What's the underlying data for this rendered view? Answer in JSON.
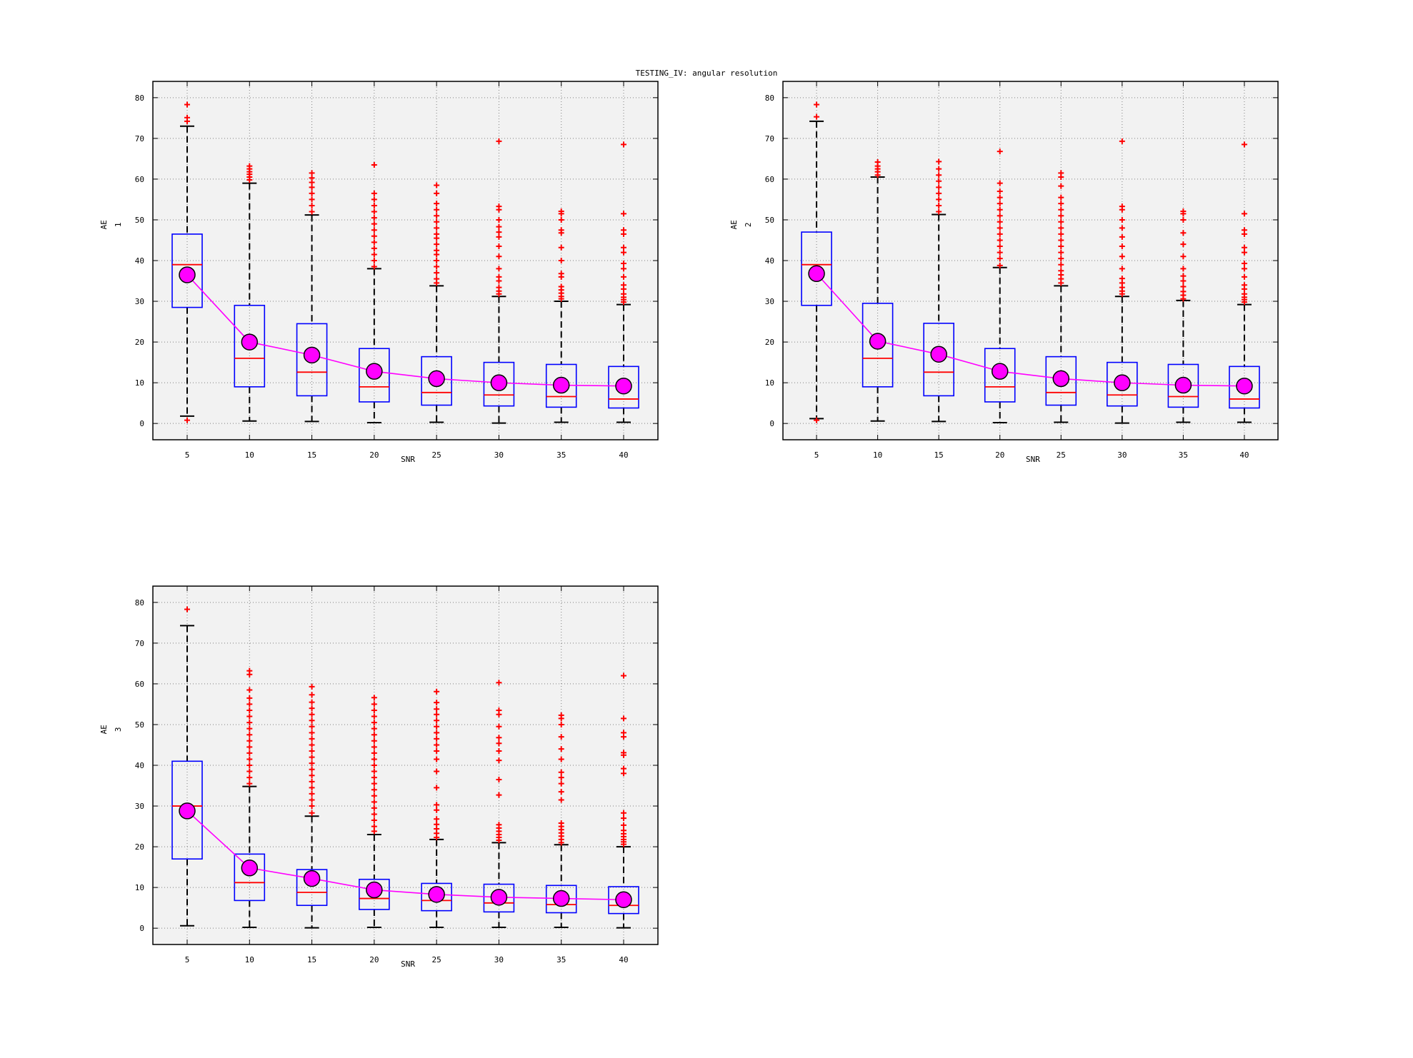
{
  "figure": {
    "title": "TESTING_IV: angular resolution"
  },
  "colors": {
    "plot_bg": "#f2f2f2",
    "box": "#0000ff",
    "median": "#ff0000",
    "outlier": "#ff0000",
    "whisker": "#000000",
    "mean_line": "#ff00ff",
    "mean_marker": "#ff00ff"
  },
  "chart_data": [
    {
      "type": "box",
      "panel": "top-left",
      "xlabel": "SNR",
      "ylabel_top": "AE",
      "ylabel_sub": "1",
      "ylim": [
        -4,
        84
      ],
      "yticks": [
        0,
        10,
        20,
        30,
        40,
        50,
        60,
        70,
        80
      ],
      "grid": true,
      "categories": [
        "5",
        "10",
        "15",
        "20",
        "25",
        "30",
        "35",
        "40"
      ],
      "boxes": [
        {
          "q1": 28.5,
          "median": 39,
          "q3": 46.5,
          "whisker_low": 1.8,
          "whisker_high": 73
        },
        {
          "q1": 9,
          "median": 16,
          "q3": 29,
          "whisker_low": 0.6,
          "whisker_high": 59
        },
        {
          "q1": 6.8,
          "median": 12.6,
          "q3": 24.5,
          "whisker_low": 0.5,
          "whisker_high": 51.2
        },
        {
          "q1": 5.3,
          "median": 9,
          "q3": 18.4,
          "whisker_low": 0.2,
          "whisker_high": 38
        },
        {
          "q1": 4.5,
          "median": 7.6,
          "q3": 16.4,
          "whisker_low": 0.3,
          "whisker_high": 33.8
        },
        {
          "q1": 4.3,
          "median": 7,
          "q3": 15,
          "whisker_low": 0.1,
          "whisker_high": 31.2
        },
        {
          "q1": 4,
          "median": 6.6,
          "q3": 14.5,
          "whisker_low": 0.3,
          "whisker_high": 30
        },
        {
          "q1": 3.8,
          "median": 6,
          "q3": 14,
          "whisker_low": 0.3,
          "whisker_high": 29.2
        }
      ],
      "means": [
        36.5,
        20,
        16.8,
        12.8,
        11,
        10,
        9.4,
        9.2
      ],
      "outliers": [
        [
          0.8,
          74.2,
          75.1,
          78.3
        ],
        [
          59.8,
          60.5,
          61.2,
          61.8,
          62.5,
          63.2
        ],
        [
          52,
          53.5,
          55,
          56.5,
          58,
          59.2,
          60.3,
          61.5
        ],
        [
          38.5,
          40,
          41.5,
          43,
          44.5,
          46,
          47.5,
          49,
          50.5,
          52,
          53.5,
          55,
          56.5,
          63.5
        ],
        [
          34.5,
          35.5,
          37,
          38.5,
          40,
          41.5,
          42.5,
          44,
          45.5,
          46.5,
          48,
          49.5,
          51,
          52.5,
          54,
          56.5,
          58.5
        ],
        [
          31.8,
          32.5,
          33.4,
          35,
          36,
          38,
          41,
          43.5,
          45.8,
          47,
          48.3,
          50,
          52.5,
          53.3,
          69.3
        ],
        [
          30.6,
          31.2,
          32,
          32.8,
          33.6,
          36,
          36.8,
          40,
          43.2,
          46.8,
          47.5,
          50,
          51.5,
          52.1
        ],
        [
          29.8,
          30.4,
          31,
          31.8,
          33,
          34,
          36,
          38,
          39.3,
          42,
          43.2,
          46.5,
          47.5,
          51.5,
          68.5
        ]
      ]
    },
    {
      "type": "box",
      "panel": "top-right",
      "xlabel": "SNR",
      "ylabel_top": "AE",
      "ylabel_sub": "2",
      "ylim": [
        -4,
        84
      ],
      "yticks": [
        0,
        10,
        20,
        30,
        40,
        50,
        60,
        70,
        80
      ],
      "grid": true,
      "categories": [
        "5",
        "10",
        "15",
        "20",
        "25",
        "30",
        "35",
        "40"
      ],
      "boxes": [
        {
          "q1": 29,
          "median": 39,
          "q3": 47,
          "whisker_low": 1.2,
          "whisker_high": 74.2
        },
        {
          "q1": 9,
          "median": 16,
          "q3": 29.5,
          "whisker_low": 0.6,
          "whisker_high": 60.5
        },
        {
          "q1": 6.8,
          "median": 12.6,
          "q3": 24.6,
          "whisker_low": 0.5,
          "whisker_high": 51.3
        },
        {
          "q1": 5.3,
          "median": 9,
          "q3": 18.4,
          "whisker_low": 0.2,
          "whisker_high": 38.3
        },
        {
          "q1": 4.5,
          "median": 7.6,
          "q3": 16.4,
          "whisker_low": 0.3,
          "whisker_high": 33.8
        },
        {
          "q1": 4.3,
          "median": 7,
          "q3": 15,
          "whisker_low": 0.1,
          "whisker_high": 31.2
        },
        {
          "q1": 4,
          "median": 6.6,
          "q3": 14.5,
          "whisker_low": 0.3,
          "whisker_high": 30.2
        },
        {
          "q1": 3.8,
          "median": 6,
          "q3": 14,
          "whisker_low": 0.3,
          "whisker_high": 29.2
        }
      ],
      "means": [
        36.8,
        20.2,
        17,
        12.8,
        11,
        10,
        9.4,
        9.2
      ],
      "outliers": [
        [
          0.8,
          75.3,
          78.3
        ],
        [
          61,
          61.8,
          62.5,
          63.2,
          64.2
        ],
        [
          52,
          53.5,
          55,
          56.5,
          58,
          59.5,
          61,
          62.5,
          64.3
        ],
        [
          38.8,
          40.5,
          42,
          43.5,
          45,
          46.5,
          48,
          49.5,
          51,
          52.5,
          54,
          55.5,
          57,
          59,
          66.8
        ],
        [
          34.5,
          35.5,
          36.5,
          37.5,
          39,
          40.5,
          42,
          43.5,
          45,
          46.5,
          48,
          49.5,
          51,
          52.5,
          54,
          55.5,
          58.3,
          60.5,
          61.5
        ],
        [
          31.8,
          32.5,
          33.4,
          34.5,
          35.6,
          38,
          41,
          43.5,
          45.8,
          48,
          50,
          52.5,
          53.3,
          69.3
        ],
        [
          30.6,
          31.5,
          32.4,
          33.6,
          35,
          36.2,
          38,
          41,
          44,
          46.8,
          50,
          51.5,
          52.1
        ],
        [
          29.8,
          30.4,
          31,
          31.8,
          33,
          34,
          36,
          38,
          39.3,
          42,
          43.2,
          46.5,
          47.5,
          51.5,
          68.5
        ]
      ]
    },
    {
      "type": "box",
      "panel": "bottom-left",
      "xlabel": "SNR",
      "ylabel_top": "AE",
      "ylabel_sub": "3",
      "ylim": [
        -4,
        84
      ],
      "yticks": [
        0,
        10,
        20,
        30,
        40,
        50,
        60,
        70,
        80
      ],
      "grid": true,
      "categories": [
        "5",
        "10",
        "15",
        "20",
        "25",
        "30",
        "35",
        "40"
      ],
      "boxes": [
        {
          "q1": 17,
          "median": 30,
          "q3": 41,
          "whisker_low": 0.6,
          "whisker_high": 74.3
        },
        {
          "q1": 6.8,
          "median": 11.2,
          "q3": 18.2,
          "whisker_low": 0.2,
          "whisker_high": 34.8
        },
        {
          "q1": 5.6,
          "median": 8.8,
          "q3": 14.4,
          "whisker_low": 0.1,
          "whisker_high": 27.5
        },
        {
          "q1": 4.6,
          "median": 7.3,
          "q3": 12,
          "whisker_low": 0.2,
          "whisker_high": 23
        },
        {
          "q1": 4.3,
          "median": 6.8,
          "q3": 11,
          "whisker_low": 0.2,
          "whisker_high": 21.8
        },
        {
          "q1": 4,
          "median": 6.2,
          "q3": 10.8,
          "whisker_low": 0.2,
          "whisker_high": 21
        },
        {
          "q1": 3.8,
          "median": 5.8,
          "q3": 10.5,
          "whisker_low": 0.2,
          "whisker_high": 20.5
        },
        {
          "q1": 3.6,
          "median": 5.6,
          "q3": 10.2,
          "whisker_low": 0.1,
          "whisker_high": 20
        }
      ],
      "means": [
        28.8,
        14.8,
        12.2,
        9.4,
        8.3,
        7.6,
        7.3,
        7
      ],
      "outliers": [
        [
          78.3
        ],
        [
          35.5,
          37,
          38.5,
          40,
          41.5,
          43,
          44.5,
          46,
          47.5,
          49,
          50.5,
          52,
          53.5,
          55,
          56.5,
          58.5,
          62.3,
          63.2
        ],
        [
          28.3,
          30,
          31.5,
          33,
          34.5,
          36,
          37.5,
          39,
          40.5,
          42,
          43.5,
          45,
          46.5,
          48,
          49.5,
          51,
          52.5,
          54,
          55.5,
          57.3,
          59.3
        ],
        [
          23.8,
          25,
          26.5,
          28,
          29.5,
          31,
          32.5,
          34,
          35.5,
          37,
          38.5,
          40,
          41.5,
          43,
          44.5,
          46,
          47.5,
          49,
          50.5,
          52,
          53.5,
          55,
          56.6
        ],
        [
          22.3,
          23.3,
          24.4,
          25.5,
          26.8,
          29,
          30.3,
          34.5,
          38.5,
          41.5,
          43.5,
          45,
          46.5,
          48,
          49.5,
          51,
          52.5,
          53.8,
          55.4,
          58.1
        ],
        [
          21.6,
          22.3,
          23,
          23.8,
          24.6,
          25.4,
          32.7,
          36.5,
          41.2,
          43.5,
          45.4,
          46.8,
          49.5,
          52.5,
          53.5,
          60.3
        ],
        [
          21,
          21.8,
          22.6,
          23.4,
          24.2,
          25,
          25.8,
          31.5,
          33.5,
          35.5,
          37,
          38.3,
          41.5,
          44,
          47,
          50,
          51.5,
          52.3
        ],
        [
          20.6,
          21.2,
          21.8,
          22.5,
          23.2,
          24,
          25.3,
          27,
          28.3,
          38,
          39.2,
          42.5,
          43.1,
          47,
          48,
          51.5,
          62
        ]
      ]
    }
  ]
}
